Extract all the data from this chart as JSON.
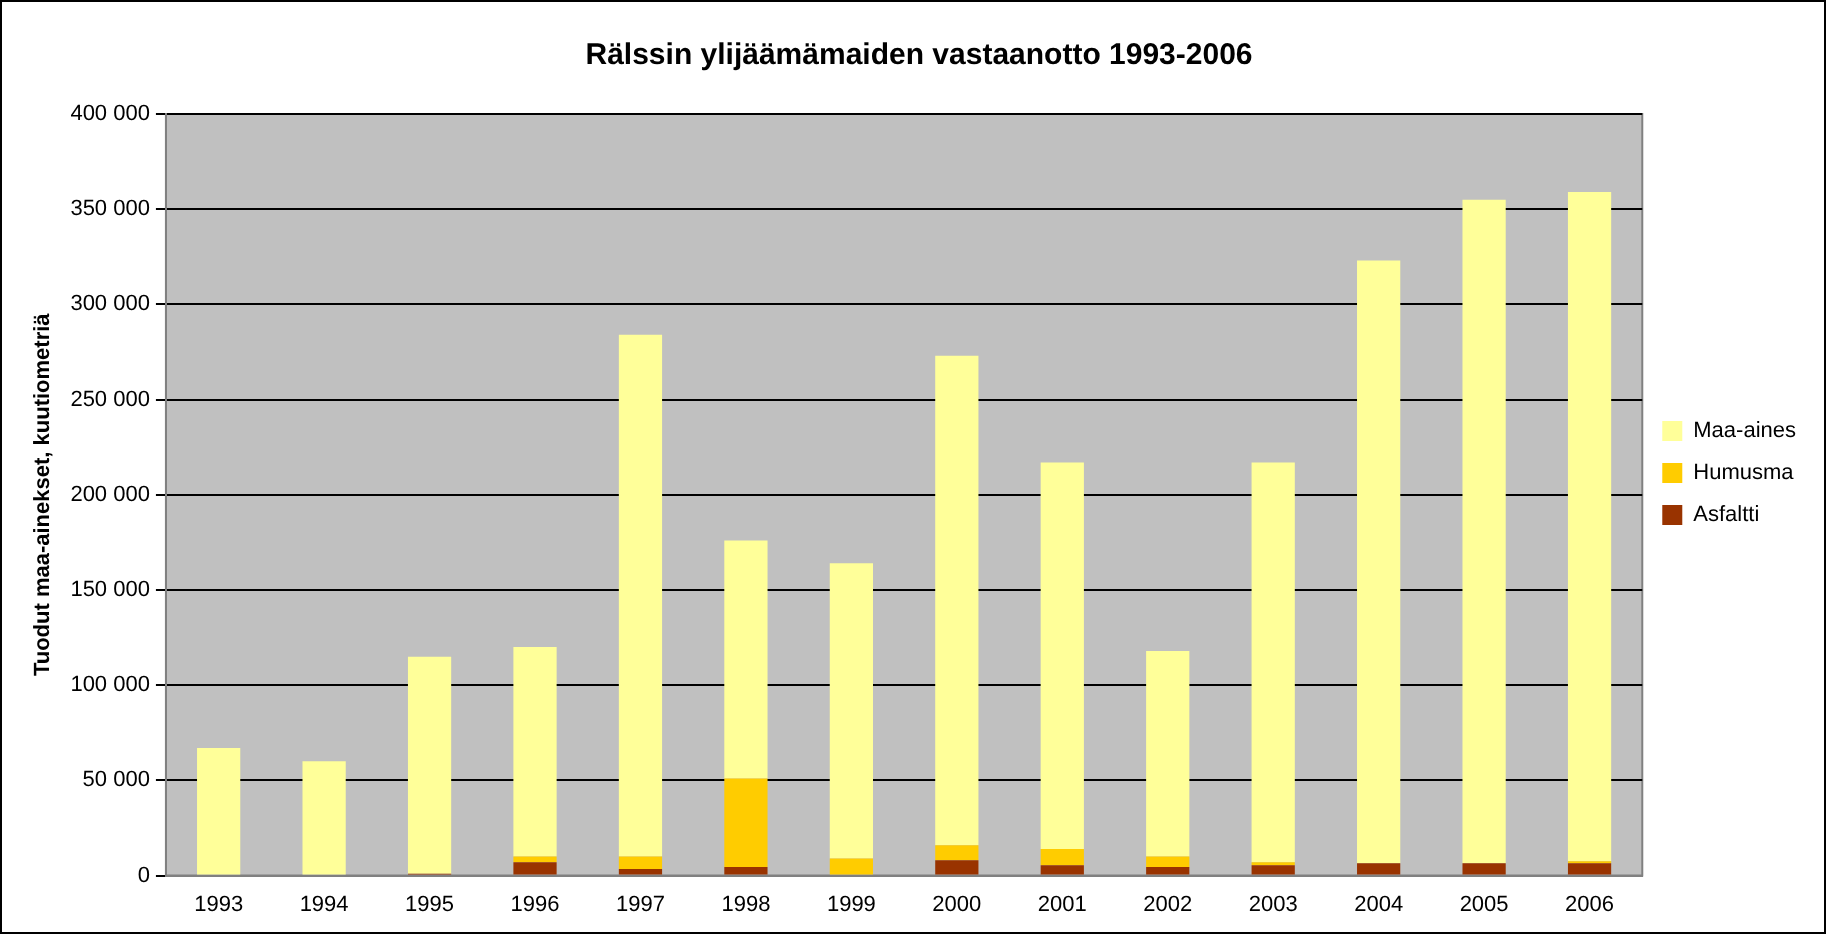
{
  "chart_data": {
    "type": "bar",
    "title": "Rälssin ylijäämämaiden vastaanotto 1993-2006",
    "ylabel": "Tuodut maa-ainekset, kuutiometriä",
    "categories": [
      "1993",
      "1994",
      "1995",
      "1996",
      "1997",
      "1998",
      "1999",
      "2000",
      "2001",
      "2002",
      "2003",
      "2004",
      "2005",
      "2006"
    ],
    "stacked": true,
    "legend": "right",
    "grid": "y",
    "ylim": [
      0,
      400000
    ],
    "yticks": [
      {
        "value": 0,
        "label": "0"
      },
      {
        "value": 50000,
        "label": "50 000"
      },
      {
        "value": 100000,
        "label": "100 000"
      },
      {
        "value": 150000,
        "label": "150 000"
      },
      {
        "value": 200000,
        "label": "200 000"
      },
      {
        "value": 250000,
        "label": "250 000"
      },
      {
        "value": 300000,
        "label": "300 000"
      },
      {
        "value": 350000,
        "label": "350 000"
      },
      {
        "value": 400000,
        "label": "400 000"
      }
    ],
    "series": [
      {
        "name": "Asfaltti",
        "color": "#993300",
        "values": [
          0,
          0,
          1000,
          7000,
          3500,
          4500,
          0,
          8000,
          5500,
          4500,
          5500,
          6500,
          6500,
          6500
        ]
      },
      {
        "name": "Humusma",
        "color": "#ffcc00",
        "values": [
          0,
          0,
          0,
          3000,
          6500,
          46500,
          9000,
          8000,
          8500,
          5500,
          1500,
          0,
          0,
          1000
        ]
      },
      {
        "name": "Maa-aines",
        "color": "#ffff99",
        "values": [
          67000,
          60000,
          114000,
          110000,
          274000,
          125000,
          155000,
          257000,
          203000,
          108000,
          210000,
          316500,
          348500,
          351500
        ]
      }
    ]
  }
}
